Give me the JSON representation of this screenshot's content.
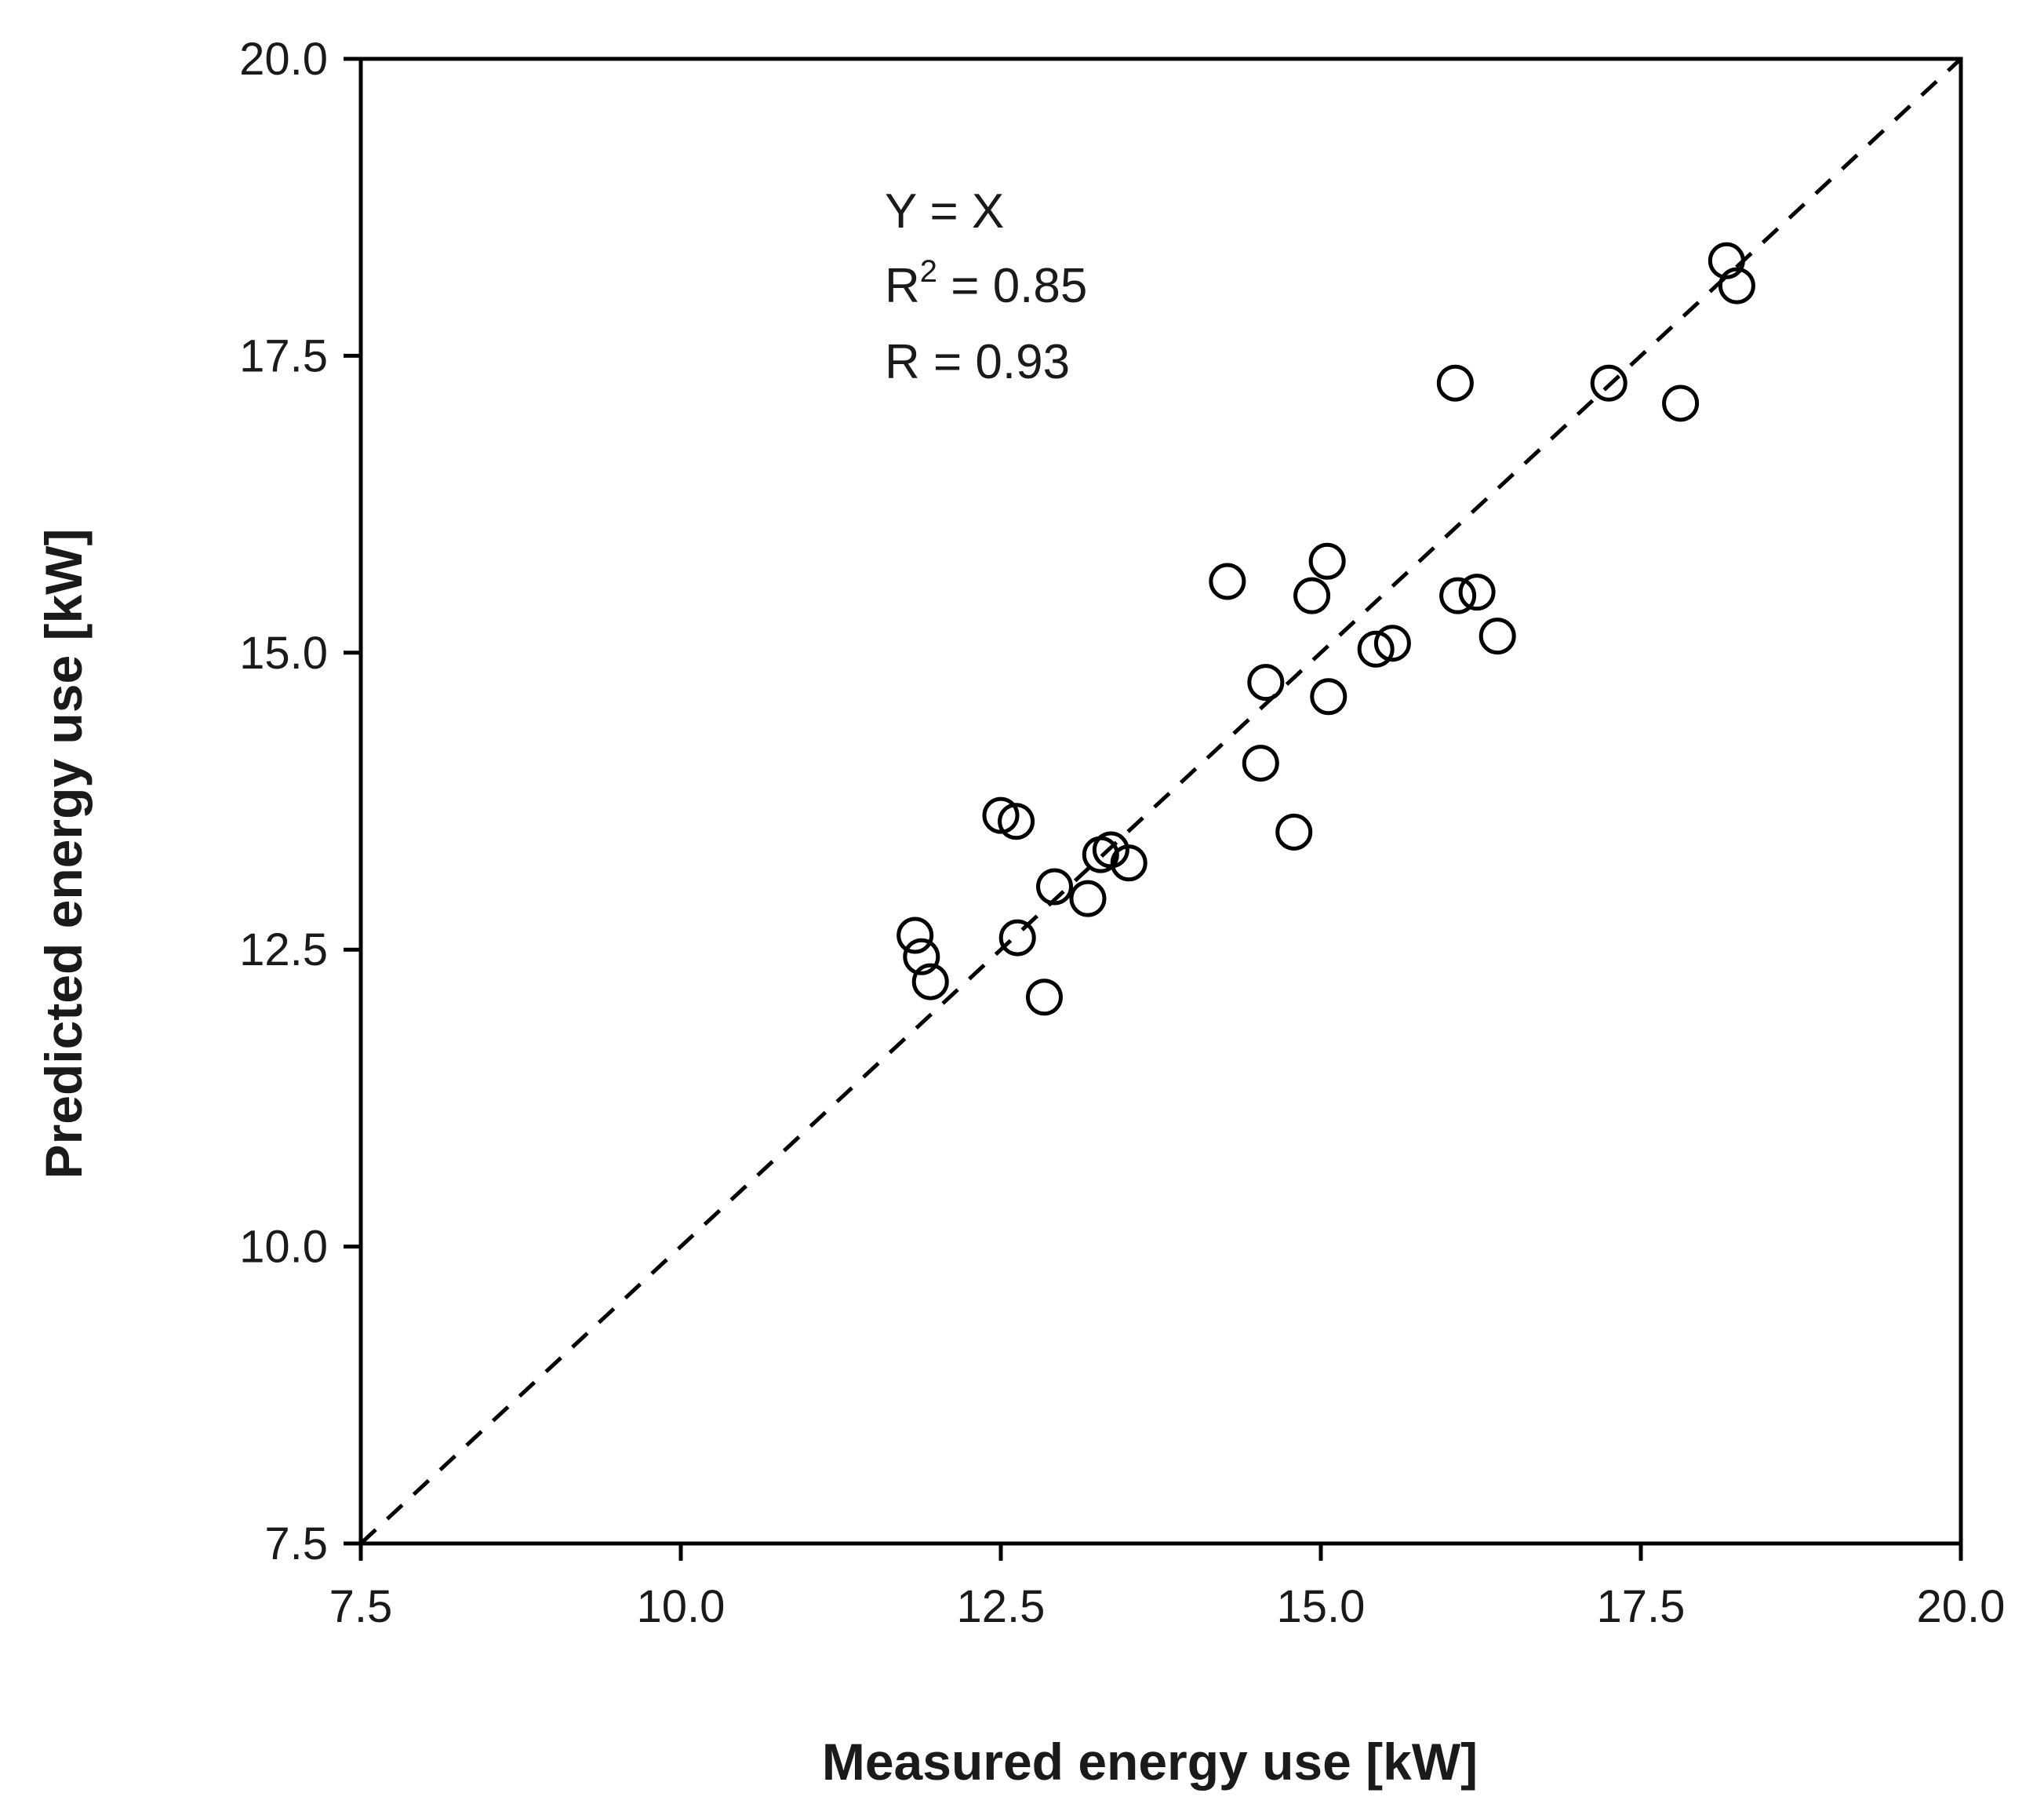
{
  "chart_data": {
    "type": "scatter",
    "title": "",
    "xlabel": "Measured energy use [kW]",
    "ylabel": "Predicted energy use [kW]",
    "xlim": [
      7.5,
      20.0
    ],
    "ylim": [
      7.5,
      20.0
    ],
    "xticks": [
      "7.5",
      "10.0",
      "12.5",
      "15.0",
      "17.5",
      "20.0"
    ],
    "yticks": [
      "7.5",
      "10.0",
      "12.5",
      "15.0",
      "17.5",
      "20.0"
    ],
    "grid": false,
    "legend": "none",
    "reference_line": {
      "name": "Y = X",
      "style": "dashed",
      "points": [
        [
          7.5,
          7.5
        ],
        [
          20.0,
          20.0
        ]
      ]
    },
    "annotations": {
      "line1": "Y = X",
      "line2_prefix": "R",
      "line2_sup": "2",
      "line2_suffix": " = 0.85",
      "line3": "R = 0.93"
    },
    "series": [
      {
        "name": "Measured vs Predicted",
        "marker": "open-circle",
        "points": [
          [
            11.83,
            12.62
          ],
          [
            11.88,
            12.44
          ],
          [
            11.95,
            12.23
          ],
          [
            12.5,
            13.63
          ],
          [
            12.62,
            13.58
          ],
          [
            12.63,
            12.6
          ],
          [
            12.84,
            12.1
          ],
          [
            12.92,
            13.03
          ],
          [
            13.18,
            12.93
          ],
          [
            13.28,
            13.3
          ],
          [
            13.36,
            13.34
          ],
          [
            13.5,
            13.23
          ],
          [
            14.27,
            15.6
          ],
          [
            14.53,
            14.07
          ],
          [
            14.57,
            14.75
          ],
          [
            14.79,
            13.49
          ],
          [
            14.93,
            15.48
          ],
          [
            15.05,
            15.77
          ],
          [
            15.06,
            14.63
          ],
          [
            15.43,
            15.03
          ],
          [
            15.56,
            15.08
          ],
          [
            16.05,
            17.27
          ],
          [
            16.07,
            15.48
          ],
          [
            16.22,
            15.51
          ],
          [
            16.38,
            15.14
          ],
          [
            17.25,
            17.27
          ],
          [
            17.81,
            17.1
          ],
          [
            18.17,
            18.3
          ],
          [
            18.25,
            18.09
          ]
        ]
      }
    ]
  }
}
